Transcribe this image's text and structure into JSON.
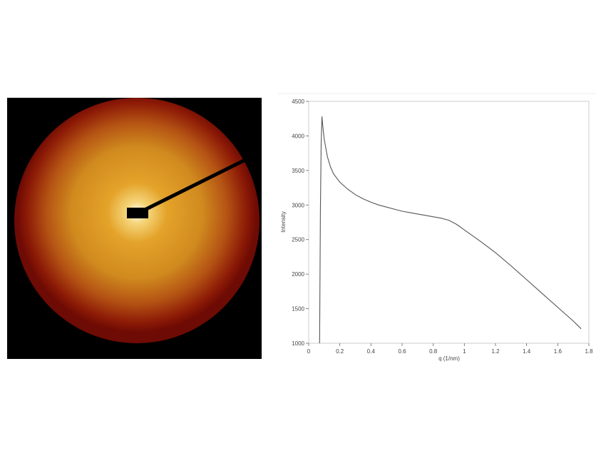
{
  "chart_data": {
    "type": "line",
    "xlabel": "q (1/nm)",
    "ylabel": "Intensity",
    "xlim": [
      0,
      1.8
    ],
    "ylim": [
      1000,
      4500
    ],
    "xticks": [
      0,
      0.2,
      0.4,
      0.6,
      0.8,
      1,
      1.2,
      1.4,
      1.6,
      1.8
    ],
    "yticks": [
      1000,
      1500,
      2000,
      2500,
      3000,
      3500,
      4000,
      4500
    ],
    "grid": false,
    "series": [
      {
        "color": "#555555",
        "x": [
          0.07,
          0.075,
          0.08,
          0.085,
          0.09,
          0.1,
          0.12,
          0.14,
          0.16,
          0.2,
          0.25,
          0.3,
          0.35,
          0.4,
          0.45,
          0.5,
          0.55,
          0.6,
          0.65,
          0.7,
          0.75,
          0.8,
          0.85,
          0.9,
          0.95,
          1.0,
          1.1,
          1.2,
          1.3,
          1.4,
          1.5,
          1.6,
          1.7,
          1.75,
          1.75
        ],
        "y": [
          1000,
          2900,
          3900,
          4280,
          4150,
          3950,
          3700,
          3550,
          3450,
          3330,
          3230,
          3150,
          3090,
          3040,
          3000,
          2970,
          2940,
          2910,
          2890,
          2870,
          2850,
          2830,
          2810,
          2780,
          2720,
          2640,
          2480,
          2310,
          2120,
          1920,
          1720,
          1520,
          1320,
          1210,
          1210
        ]
      }
    ]
  },
  "detector_image": {
    "colormap": [
      "#ffffff",
      "#f5d57a",
      "#e4a32a",
      "#d08a1e",
      "#b55414",
      "#8c1a06",
      "#6e0b04",
      "#000000"
    ],
    "background": "#000000"
  }
}
